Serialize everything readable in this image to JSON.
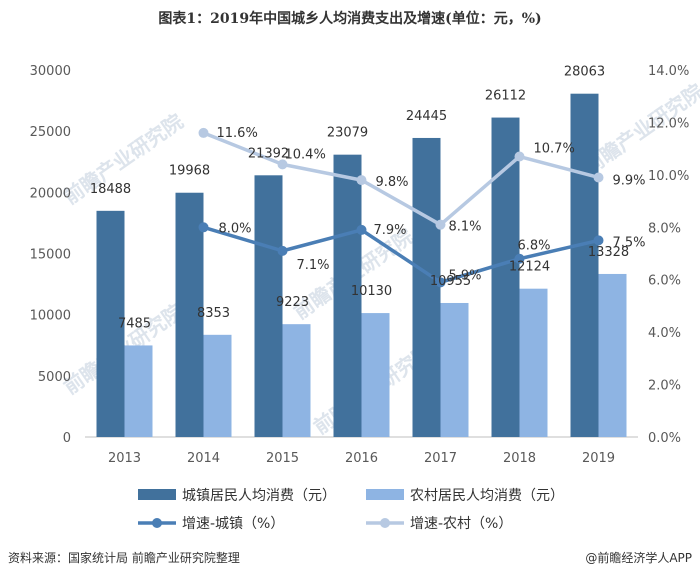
{
  "title": "图表1：2019年中国城乡人均消费支出及增速(单位：元，%)",
  "source": "资料来源：国家统计局 前瞻产业研究院整理",
  "brand": "@前瞻经济学人APP",
  "watermark": "前瞻产业研究院",
  "colors": {
    "urban_bar": "#41719c",
    "rural_bar": "#8eb4e3",
    "urban_line": "#4a7eb5",
    "rural_line": "#b7c9e2",
    "axis": "#bfbfbf"
  },
  "chart_data": {
    "type": "bar+line",
    "categories": [
      "2013",
      "2014",
      "2015",
      "2016",
      "2017",
      "2018",
      "2019"
    ],
    "series": [
      {
        "name": "城镇居民人均消费（元）",
        "type": "bar",
        "axis": "left",
        "values": [
          18488,
          19968,
          21392,
          23079,
          24445,
          26112,
          28063
        ]
      },
      {
        "name": "农村居民人均消费（元）",
        "type": "bar",
        "axis": "left",
        "values": [
          7485,
          8353,
          9223,
          10130,
          10955,
          12124,
          13328
        ]
      },
      {
        "name": "增速-城镇（%）",
        "type": "line",
        "axis": "right",
        "values": [
          null,
          8.0,
          7.1,
          7.9,
          5.9,
          6.8,
          7.5
        ],
        "labels": [
          "",
          "8.0%",
          "7.1%",
          "7.9%",
          "5.9%",
          "6.8%",
          "7.5%"
        ]
      },
      {
        "name": "增速-农村（%）",
        "type": "line",
        "axis": "right",
        "values": [
          null,
          11.6,
          10.4,
          9.8,
          8.1,
          10.7,
          9.9
        ],
        "labels": [
          "",
          "11.6%",
          "10.4%",
          "9.8%",
          "8.1%",
          "10.7%",
          "9.9%"
        ]
      }
    ],
    "left_axis": {
      "min": 0,
      "max": 30000,
      "ticks": [
        "0",
        "5000",
        "10000",
        "15000",
        "20000",
        "25000",
        "30000"
      ]
    },
    "right_axis": {
      "min": 0,
      "max": 14,
      "ticks": [
        "0.0%",
        "2.0%",
        "4.0%",
        "6.0%",
        "8.0%",
        "10.0%",
        "12.0%",
        "14.0%"
      ]
    },
    "grid": false,
    "legend_position": "bottom"
  }
}
